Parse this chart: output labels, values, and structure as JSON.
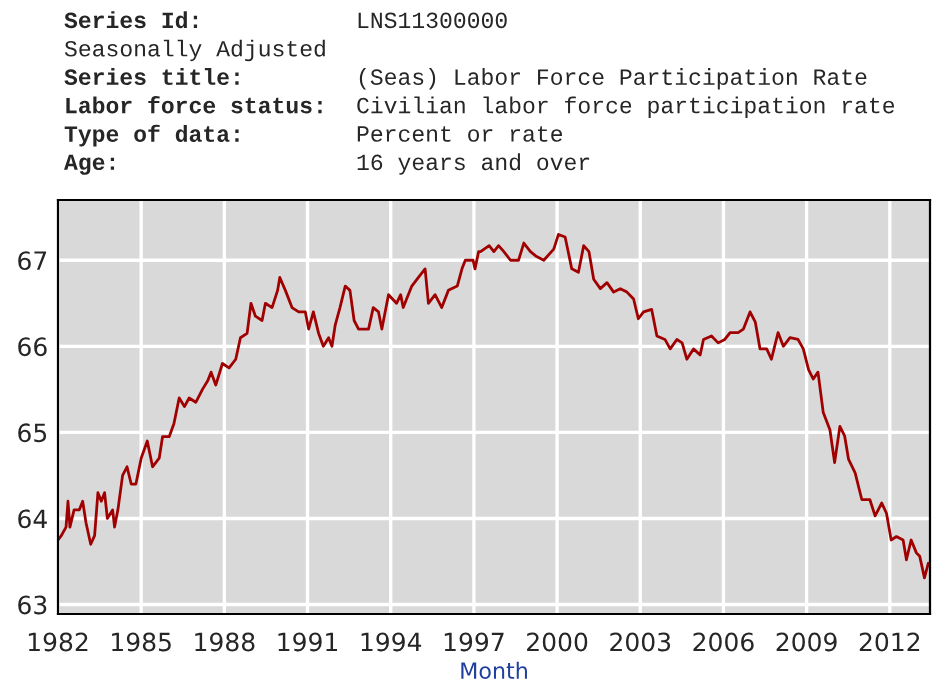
{
  "chart_data": {
    "type": "line",
    "xlabel": "Month",
    "annotations": [
      "Series Id:",
      "LNS11300000",
      "Seasonally Adjusted",
      "Series title:",
      "(Seas) Labor Force Participation Rate",
      "Labor force status:",
      "Civilian labor force participation rate",
      "Type of data:",
      "Percent or rate",
      "Age:",
      "16 years and over"
    ],
    "x": [
      1982.0,
      1982.12,
      1982.29,
      1982.36,
      1982.43,
      1982.58,
      1982.77,
      1982.89,
      1983.01,
      1983.18,
      1983.32,
      1983.44,
      1983.56,
      1983.68,
      1983.78,
      1983.97,
      1984.04,
      1984.16,
      1984.33,
      1984.49,
      1984.64,
      1984.81,
      1985.0,
      1985.22,
      1985.41,
      1985.65,
      1985.77,
      1986.01,
      1986.18,
      1986.37,
      1986.56,
      1986.73,
      1986.97,
      1987.21,
      1987.4,
      1987.52,
      1987.69,
      1987.93,
      1988.17,
      1988.41,
      1988.58,
      1988.82,
      1988.96,
      1989.12,
      1989.36,
      1989.48,
      1989.72,
      1989.92,
      1990.0,
      1990.2,
      1990.44,
      1990.68,
      1990.92,
      1991.04,
      1991.21,
      1991.4,
      1991.57,
      1991.76,
      1991.88,
      1992.0,
      1992.17,
      1992.36,
      1992.53,
      1992.68,
      1992.84,
      1993.2,
      1993.37,
      1993.56,
      1993.68,
      1993.92,
      1994.21,
      1994.36,
      1994.45,
      1994.76,
      1995.0,
      1995.24,
      1995.36,
      1995.6,
      1995.84,
      1996.08,
      1996.4,
      1996.57,
      1996.69,
      1996.97,
      1997.04,
      1997.17,
      1997.24,
      1997.55,
      1997.72,
      1997.89,
      1998.08,
      1998.32,
      1998.61,
      1998.8,
      1999.04,
      1999.23,
      1999.52,
      1999.88,
      2000.05,
      2000.29,
      2000.53,
      2000.77,
      2000.96,
      2001.15,
      2001.32,
      2001.56,
      2001.8,
      2002.04,
      2002.28,
      2002.52,
      2002.76,
      2002.93,
      2003.12,
      2003.41,
      2003.6,
      2003.89,
      2004.08,
      2004.32,
      2004.51,
      2004.68,
      2004.92,
      2005.16,
      2005.28,
      2005.57,
      2005.81,
      2006.05,
      2006.24,
      2006.53,
      2006.72,
      2006.96,
      2007.15,
      2007.32,
      2007.56,
      2007.73,
      2007.97,
      2008.16,
      2008.4,
      2008.69,
      2008.88,
      2009.07,
      2009.24,
      2009.41,
      2009.6,
      2009.84,
      2010.01,
      2010.2,
      2010.37,
      2010.51,
      2010.75,
      2010.99,
      2011.28,
      2011.47,
      2011.71,
      2011.88,
      2012.05,
      2012.24,
      2012.48,
      2012.6,
      2012.77,
      2012.96,
      2013.08,
      2013.25,
      2013.39
    ],
    "series": [
      {
        "color": "#a00000",
        "values": [
          63.75,
          63.8,
          63.9,
          64.2,
          63.9,
          64.1,
          64.1,
          64.2,
          63.95,
          63.7,
          63.8,
          64.3,
          64.2,
          64.3,
          64.0,
          64.1,
          63.9,
          64.1,
          64.5,
          64.6,
          64.4,
          64.4,
          64.7,
          64.9,
          64.6,
          64.7,
          64.95,
          64.95,
          65.1,
          65.4,
          65.3,
          65.4,
          65.35,
          65.5,
          65.6,
          65.7,
          65.55,
          65.8,
          65.75,
          65.85,
          66.1,
          66.15,
          66.5,
          66.35,
          66.3,
          66.5,
          66.45,
          66.65,
          66.8,
          66.65,
          66.45,
          66.4,
          66.4,
          66.2,
          66.4,
          66.15,
          66.0,
          66.1,
          66.0,
          66.25,
          66.45,
          66.7,
          66.65,
          66.3,
          66.2,
          66.2,
          66.45,
          66.4,
          66.2,
          66.6,
          66.5,
          66.6,
          66.45,
          66.7,
          66.8,
          66.9,
          66.5,
          66.6,
          66.45,
          66.65,
          66.7,
          66.9,
          67.0,
          67.0,
          66.9,
          67.1,
          67.1,
          67.17,
          67.1,
          67.17,
          67.1,
          67.0,
          67.0,
          67.2,
          67.1,
          67.05,
          67.0,
          67.13,
          67.3,
          67.27,
          66.9,
          66.86,
          67.17,
          67.1,
          66.78,
          66.67,
          66.74,
          66.63,
          66.67,
          66.63,
          66.55,
          66.32,
          66.4,
          66.43,
          66.12,
          66.08,
          65.97,
          66.08,
          66.04,
          65.85,
          65.97,
          65.9,
          66.08,
          66.12,
          66.04,
          66.08,
          66.16,
          66.16,
          66.2,
          66.4,
          66.28,
          65.97,
          65.97,
          65.85,
          66.16,
          66.0,
          66.1,
          66.08,
          65.97,
          65.73,
          65.62,
          65.7,
          65.23,
          65.03,
          64.65,
          65.07,
          64.96,
          64.69,
          64.53,
          64.22,
          64.22,
          64.03,
          64.18,
          64.06,
          63.75,
          63.79,
          63.75,
          63.52,
          63.75,
          63.6,
          63.56,
          63.31,
          63.48
        ]
      }
    ],
    "xlim": [
      1982,
      2013.45
    ],
    "xticks": [
      1982,
      1985,
      1988,
      1991,
      1994,
      1997,
      2000,
      2003,
      2006,
      2009,
      2012
    ],
    "ylim": [
      62.89,
      67.7
    ],
    "yticks": [
      63,
      64,
      65,
      66,
      67
    ],
    "grid": true,
    "legend": false,
    "line_style": "solid",
    "marker": "none"
  }
}
